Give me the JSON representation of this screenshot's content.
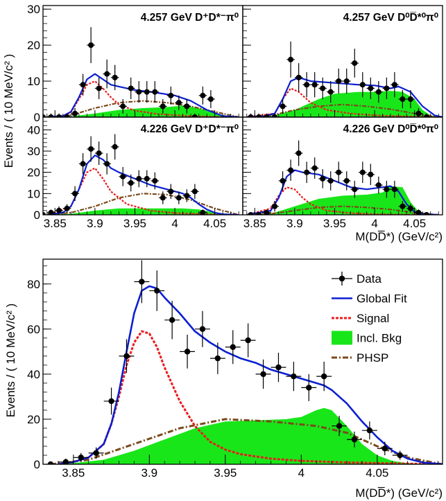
{
  "top_figure": {
    "ylabel": "Events / ( 10 MeV/c² )",
    "xlabel": "M(DD̅*) (GeV/c²)",
    "x_ticks": [
      "3.85",
      "3.9",
      "3.95",
      "4",
      "4.05"
    ],
    "top_row_y_ticks": [
      "0",
      "10",
      "20",
      "30"
    ],
    "bottom_row_y_ticks": [
      "0",
      "10",
      "20",
      "30",
      "40"
    ]
  },
  "bottom_figure": {
    "ylabel": "Events / ( 10 MeV/c² )",
    "xlabel": "M(DD̅*) (GeV/c²)",
    "x_ticks": [
      "3.85",
      "3.9",
      "3.95",
      "4",
      "4.05"
    ],
    "y_ticks": [
      "0",
      "20",
      "40",
      "60",
      "80"
    ]
  },
  "legend": [
    {
      "key": "data",
      "label": "Data"
    },
    {
      "key": "fit",
      "label": "Global Fit"
    },
    {
      "key": "signal",
      "label": "Signal"
    },
    {
      "key": "bkg",
      "label": "Incl. Bkg"
    },
    {
      "key": "phsp",
      "label": "PHSP"
    }
  ],
  "colors": {
    "data": "#000000",
    "fit": "#0b1fd1",
    "signal": "#ea1c1c",
    "bkg": "#19e619",
    "phsp": "#7a4a1c"
  },
  "chart_data": [
    {
      "type": "scatter",
      "title": "4.257 GeV D⁺D*⁻π⁰",
      "xlim": [
        3.835,
        4.085
      ],
      "ylim": [
        0,
        31
      ],
      "data": {
        "x": [
          3.835,
          3.845,
          3.855,
          3.865,
          3.875,
          3.885,
          3.895,
          3.905,
          3.915,
          3.925,
          3.935,
          3.945,
          3.955,
          3.965,
          3.975,
          3.985,
          3.995,
          4.005,
          4.015,
          4.025,
          4.035,
          4.045
        ],
        "y": [
          0,
          0,
          0,
          0,
          1,
          9,
          20,
          8,
          12,
          11,
          3,
          8,
          7,
          7,
          7,
          3,
          6,
          4,
          3,
          0,
          6,
          5
        ],
        "err": [
          1,
          1,
          1,
          1,
          1.5,
          3,
          5,
          3,
          4,
          3.5,
          2,
          3,
          3,
          3,
          3,
          2,
          2.5,
          2,
          2,
          1,
          2.5,
          2.5
        ]
      },
      "series": [
        {
          "name": "Global Fit",
          "x": [
            3.84,
            3.86,
            3.87,
            3.88,
            3.89,
            3.9,
            3.91,
            3.92,
            3.93,
            3.95,
            3.97,
            4.0,
            4.02,
            4.04,
            4.06,
            4.08
          ],
          "values": [
            0,
            0.3,
            1.5,
            5.5,
            10.5,
            12,
            10.5,
            9,
            8.5,
            7.5,
            7,
            6,
            4.5,
            2,
            0.3,
            0
          ]
        },
        {
          "name": "Signal",
          "x": [
            3.84,
            3.86,
            3.87,
            3.88,
            3.89,
            3.9,
            3.91,
            3.92,
            3.93,
            3.95,
            3.98,
            4.02,
            4.06
          ],
          "values": [
            0,
            0.3,
            1.3,
            5,
            9,
            10,
            8,
            5.5,
            3.5,
            1.8,
            0.8,
            0.3,
            0
          ]
        },
        {
          "name": "Incl. Bkg",
          "x": [
            3.84,
            3.87,
            3.9,
            3.93,
            3.96,
            3.99,
            4.01,
            4.03,
            4.05,
            4.07,
            4.08
          ],
          "values": [
            0,
            0.2,
            1,
            2,
            2.5,
            2.8,
            3.2,
            2.5,
            1,
            0.2,
            0
          ]
        },
        {
          "name": "PHSP",
          "x": [
            3.84,
            3.87,
            3.9,
            3.93,
            3.96,
            3.99,
            4.02,
            4.05,
            4.08
          ],
          "values": [
            0,
            0.5,
            2.5,
            4,
            4.5,
            4,
            3,
            1.5,
            0
          ]
        }
      ]
    },
    {
      "type": "scatter",
      "title": "4.257 GeV D⁰D̅*⁰π⁰",
      "xlim": [
        3.835,
        4.085
      ],
      "ylim": [
        0,
        31
      ],
      "data": {
        "x": [
          3.845,
          3.855,
          3.865,
          3.875,
          3.885,
          3.895,
          3.905,
          3.915,
          3.925,
          3.935,
          3.945,
          3.955,
          3.965,
          3.975,
          3.985,
          3.995,
          4.005,
          4.015,
          4.025,
          4.035,
          4.045,
          4.055,
          4.065
        ],
        "y": [
          0,
          0,
          0,
          0,
          3,
          16,
          11,
          9,
          9,
          8,
          7,
          10,
          10,
          15,
          9,
          8,
          7,
          8,
          9,
          5,
          5,
          1,
          0
        ],
        "err": [
          1,
          1,
          1,
          1,
          2,
          5,
          4,
          3.5,
          3.5,
          3,
          3,
          3.5,
          3.5,
          4,
          3.5,
          3,
          3,
          3,
          3.5,
          2.5,
          2.5,
          1.5,
          1
        ]
      },
      "series": [
        {
          "name": "Global Fit",
          "x": [
            3.84,
            3.86,
            3.875,
            3.885,
            3.895,
            3.905,
            3.92,
            3.95,
            3.98,
            4.0,
            4.02,
            4.03,
            4.045,
            4.06,
            4.075,
            4.085
          ],
          "values": [
            0,
            0.2,
            1,
            5,
            10,
            11,
            10,
            9.5,
            9,
            8.8,
            8,
            8.5,
            7,
            3,
            0.5,
            0
          ]
        },
        {
          "name": "Signal",
          "x": [
            3.84,
            3.875,
            3.885,
            3.895,
            3.905,
            3.92,
            3.94,
            3.97,
            4.0,
            4.04,
            4.08
          ],
          "values": [
            0,
            1,
            5,
            8,
            7,
            4,
            2,
            1,
            0.5,
            0.2,
            0
          ]
        },
        {
          "name": "Incl. Bkg",
          "x": [
            3.84,
            3.87,
            3.9,
            3.93,
            3.95,
            3.98,
            4.0,
            4.02,
            4.035,
            4.05,
            4.06,
            4.07,
            4.08
          ],
          "values": [
            0,
            0.2,
            2,
            5,
            6.5,
            7,
            7,
            7.3,
            7,
            5,
            2,
            0.5,
            0
          ]
        },
        {
          "name": "PHSP",
          "x": [
            3.84,
            3.87,
            3.9,
            3.93,
            3.96,
            3.99,
            4.02,
            4.05,
            4.08
          ],
          "values": [
            0,
            0.4,
            2,
            3,
            3.5,
            3,
            2.2,
            1,
            0
          ]
        }
      ]
    },
    {
      "type": "scatter",
      "title": "4.226 GeV D⁺D*⁻π⁰",
      "xlim": [
        3.835,
        4.085
      ],
      "ylim": [
        0,
        46
      ],
      "data": {
        "x": [
          3.835,
          3.845,
          3.855,
          3.865,
          3.875,
          3.885,
          3.895,
          3.905,
          3.915,
          3.925,
          3.935,
          3.945,
          3.955,
          3.965,
          3.975,
          3.985,
          3.995,
          4.005,
          4.015,
          4.025,
          4.035
        ],
        "y": [
          0,
          1,
          2,
          3,
          10,
          24,
          31,
          29,
          24,
          32,
          18,
          15,
          17,
          17,
          16,
          8,
          11,
          8,
          9,
          11,
          1
        ],
        "err": [
          1,
          1.5,
          2,
          2,
          3.5,
          5,
          6,
          5.5,
          5,
          6,
          4.5,
          4,
          4,
          4,
          4,
          3,
          3.5,
          3,
          3,
          3.5,
          1.5
        ]
      },
      "series": [
        {
          "name": "Global Fit",
          "x": [
            3.84,
            3.86,
            3.87,
            3.88,
            3.89,
            3.9,
            3.91,
            3.92,
            3.93,
            3.95,
            3.97,
            3.99,
            4.01,
            4.02,
            4.03,
            4.04,
            4.05,
            4.06,
            4.08
          ],
          "values": [
            0,
            1,
            4,
            12,
            24,
            28,
            26,
            22,
            20,
            17,
            14,
            12,
            10,
            8,
            5,
            2.5,
            1,
            0.3,
            0
          ]
        },
        {
          "name": "Signal",
          "x": [
            3.84,
            3.87,
            3.88,
            3.89,
            3.9,
            3.91,
            3.92,
            3.94,
            3.97,
            4.0,
            4.04,
            4.08
          ],
          "values": [
            0,
            4,
            12,
            20,
            22,
            17,
            11,
            5,
            2,
            0.8,
            0.3,
            0
          ]
        },
        {
          "name": "Incl. Bkg",
          "x": [
            3.84,
            3.87,
            3.9,
            3.93,
            3.96,
            3.99,
            4.01,
            4.03,
            4.05,
            4.07,
            4.08
          ],
          "values": [
            0,
            0.5,
            2,
            3,
            3,
            3,
            3,
            2.5,
            1,
            0.2,
            0
          ]
        },
        {
          "name": "PHSP",
          "x": [
            3.84,
            3.87,
            3.9,
            3.93,
            3.96,
            3.99,
            4.02,
            4.05,
            4.08
          ],
          "values": [
            0,
            1,
            4,
            8,
            10,
            9.5,
            7,
            3,
            0
          ]
        }
      ]
    },
    {
      "type": "scatter",
      "title": "4.226 GeV D⁰D̅*⁰π⁰",
      "xlim": [
        3.835,
        4.085
      ],
      "ylim": [
        0,
        46
      ],
      "data": {
        "x": [
          3.845,
          3.855,
          3.865,
          3.875,
          3.885,
          3.895,
          3.905,
          3.915,
          3.925,
          3.935,
          3.945,
          3.955,
          3.965,
          3.975,
          3.985,
          3.995,
          4.005,
          4.015,
          4.025,
          4.035,
          4.045,
          4.055,
          4.065
        ],
        "y": [
          0,
          0,
          1,
          4,
          16,
          21,
          29,
          20,
          22,
          17,
          16,
          20,
          16,
          12,
          20,
          19,
          14,
          12,
          12,
          4,
          3,
          1,
          0
        ],
        "err": [
          1,
          1,
          1.5,
          2.5,
          4.5,
          5,
          6,
          5,
          5,
          4.5,
          4.5,
          5,
          4.5,
          4,
          5,
          5,
          4,
          4,
          4,
          2.5,
          2,
          1.5,
          1
        ]
      },
      "series": [
        {
          "name": "Global Fit",
          "x": [
            3.84,
            3.87,
            3.88,
            3.89,
            3.9,
            3.91,
            3.93,
            3.95,
            3.97,
            3.99,
            4.01,
            4.02,
            4.03,
            4.04,
            4.05,
            4.06,
            4.08
          ],
          "values": [
            0,
            2,
            8,
            18,
            21,
            20,
            19,
            16,
            13,
            12,
            13,
            13.5,
            11,
            5,
            1.5,
            0.3,
            0
          ]
        },
        {
          "name": "Signal",
          "x": [
            3.84,
            3.87,
            3.88,
            3.89,
            3.9,
            3.91,
            3.92,
            3.94,
            3.97,
            4.0,
            4.04,
            4.08
          ],
          "values": [
            0,
            3,
            9,
            13,
            12,
            8,
            5,
            2,
            0.8,
            0.3,
            0.1,
            0
          ]
        },
        {
          "name": "Incl. Bkg",
          "x": [
            3.84,
            3.87,
            3.9,
            3.93,
            3.96,
            3.99,
            4.01,
            4.02,
            4.035,
            4.045,
            4.055,
            4.065,
            4.08
          ],
          "values": [
            0,
            0.5,
            4,
            7.5,
            9,
            9.5,
            10.5,
            13.5,
            13,
            6,
            1.5,
            0.3,
            0
          ]
        },
        {
          "name": "PHSP",
          "x": [
            3.84,
            3.87,
            3.9,
            3.93,
            3.96,
            3.99,
            4.02,
            4.05,
            4.08
          ],
          "values": [
            0,
            0.5,
            2,
            3.5,
            4,
            3.5,
            2.5,
            1,
            0
          ]
        }
      ]
    },
    {
      "type": "scatter",
      "title": "",
      "xlim": [
        3.83,
        4.093
      ],
      "ylim": [
        0,
        91
      ],
      "data": {
        "x": [
          3.835,
          3.845,
          3.855,
          3.865,
          3.875,
          3.885,
          3.895,
          3.905,
          3.915,
          3.925,
          3.935,
          3.945,
          3.955,
          3.965,
          3.975,
          3.985,
          3.995,
          4.005,
          4.015,
          4.025,
          4.035,
          4.045,
          4.055,
          4.065
        ],
        "y": [
          0,
          1,
          3,
          5,
          28,
          48,
          81,
          77,
          64,
          50,
          60,
          47,
          52,
          55,
          40,
          43,
          39,
          34,
          39,
          17,
          11,
          15,
          7,
          4
        ],
        "err": [
          1,
          1.5,
          2,
          2.5,
          6,
          7.5,
          9.5,
          9,
          8.5,
          7.5,
          8,
          7,
          7.5,
          7.5,
          6.5,
          6.5,
          6.5,
          6,
          6.5,
          4.5,
          3.5,
          4,
          3,
          2
        ]
      },
      "series": [
        {
          "name": "Global Fit",
          "x": [
            3.84,
            3.85,
            3.86,
            3.87,
            3.875,
            3.88,
            3.885,
            3.89,
            3.895,
            3.9,
            3.905,
            3.91,
            3.92,
            3.93,
            3.94,
            3.95,
            3.96,
            3.97,
            3.98,
            3.99,
            4.0,
            4.01,
            4.015,
            4.02,
            4.03,
            4.04,
            4.05,
            4.06,
            4.07,
            4.08,
            4.093
          ],
          "values": [
            0,
            1,
            3,
            9,
            18,
            32,
            50,
            67,
            77,
            79,
            78,
            74,
            67,
            59,
            54,
            50,
            47,
            45,
            42,
            40,
            38,
            36,
            35,
            33,
            27,
            19,
            12,
            6,
            2.5,
            0.8,
            0
          ]
        },
        {
          "name": "Signal",
          "x": [
            3.84,
            3.85,
            3.86,
            3.87,
            3.875,
            3.88,
            3.885,
            3.89,
            3.895,
            3.9,
            3.905,
            3.91,
            3.92,
            3.93,
            3.94,
            3.95,
            3.96,
            3.98,
            4.0,
            4.03,
            4.06,
            4.093
          ],
          "values": [
            0,
            1,
            3,
            9,
            18,
            30,
            44,
            54,
            59,
            58,
            52,
            43,
            28,
            17,
            10,
            6.5,
            4.5,
            2.5,
            1.5,
            0.8,
            0.4,
            0
          ]
        },
        {
          "name": "Incl. Bkg",
          "x": [
            3.835,
            3.85,
            3.87,
            3.89,
            3.91,
            3.93,
            3.95,
            3.97,
            3.99,
            4.0,
            4.01,
            4.015,
            4.02,
            4.03,
            4.04,
            4.05,
            4.06,
            4.07,
            4.08,
            4.093
          ],
          "values": [
            0,
            0.5,
            2,
            6,
            11,
            16,
            19,
            19.5,
            20,
            21,
            24,
            25,
            24,
            17,
            9,
            4,
            1.5,
            0.5,
            0.1,
            0
          ]
        },
        {
          "name": "PHSP",
          "x": [
            3.835,
            3.86,
            3.89,
            3.92,
            3.95,
            3.98,
            4.01,
            4.03,
            4.05,
            4.07,
            4.093
          ],
          "values": [
            0,
            2,
            9,
            16,
            20,
            19,
            17,
            14,
            8,
            3,
            0
          ]
        }
      ]
    }
  ]
}
